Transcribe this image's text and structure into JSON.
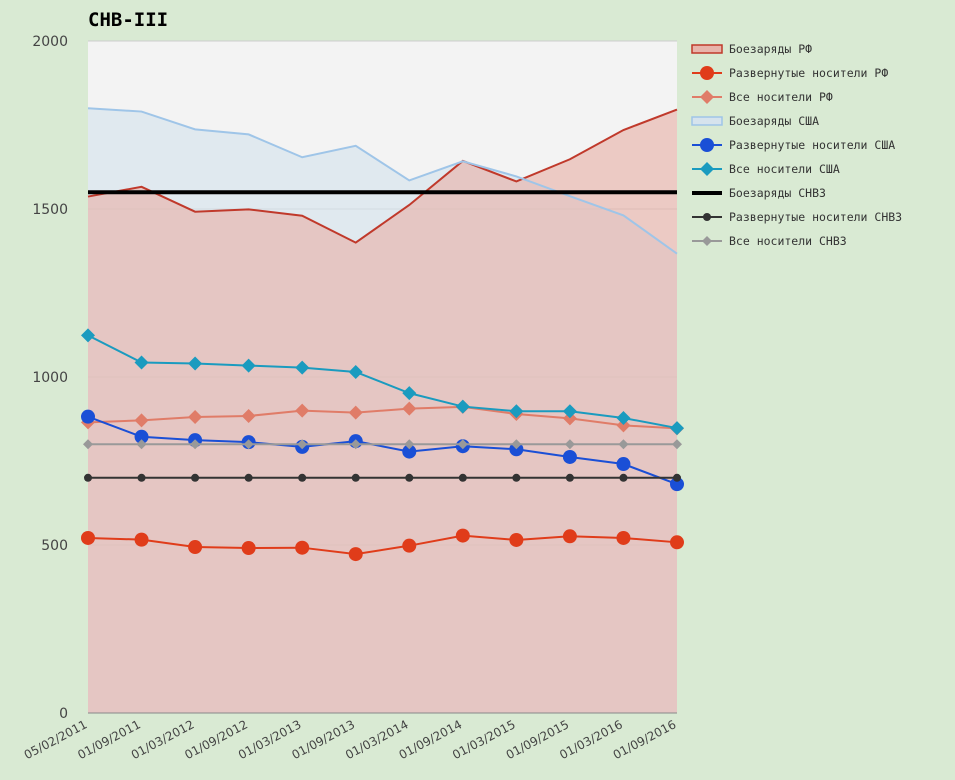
{
  "chart_data": {
    "type": "line",
    "title": "СНВ-III",
    "xlabel": "",
    "ylabel": "",
    "ylim": [
      0,
      2000
    ],
    "yticks": [
      0,
      500,
      1000,
      1500,
      2000
    ],
    "grid": true,
    "legend_position": "right",
    "categories": [
      "05/02/2011",
      "01/09/2011",
      "01/03/2012",
      "01/09/2012",
      "01/03/2013",
      "01/09/2013",
      "01/03/2014",
      "01/09/2014",
      "01/03/2015",
      "01/09/2015",
      "01/03/2016",
      "01/09/2016"
    ],
    "series": [
      {
        "name": "Боезаряды РФ",
        "kind": "area",
        "color": "#c0392b",
        "fill": "#e8b4ab",
        "values": [
          1537,
          1566,
          1492,
          1499,
          1480,
          1400,
          1512,
          1643,
          1582,
          1648,
          1735,
          1796
        ]
      },
      {
        "name": "Развернутые носители РФ",
        "kind": "line",
        "marker": "circle",
        "color": "#e03c1a",
        "values": [
          521,
          516,
          494,
          491,
          492,
          473,
          498,
          528,
          515,
          526,
          521,
          508
        ]
      },
      {
        "name": "Все носители РФ",
        "kind": "line",
        "marker": "diamond",
        "color": "#e07c68",
        "values": [
          865,
          871,
          881,
          884,
          900,
          894,
          906,
          911,
          890,
          877,
          856,
          847
        ]
      },
      {
        "name": "Боезаряды США",
        "kind": "area",
        "color": "#9fc5e8",
        "fill": "#d6e3ed",
        "values": [
          1800,
          1790,
          1737,
          1722,
          1654,
          1688,
          1585,
          1642,
          1597,
          1538,
          1481,
          1367
        ]
      },
      {
        "name": "Развернутые носители США",
        "kind": "line",
        "marker": "circle",
        "color": "#1a4fd6",
        "values": [
          882,
          822,
          812,
          806,
          792,
          809,
          778,
          794,
          785,
          762,
          741,
          681
        ]
      },
      {
        "name": "Все носители США",
        "kind": "line",
        "marker": "diamond",
        "color": "#1a9bbf",
        "values": [
          1124,
          1043,
          1040,
          1034,
          1028,
          1015,
          952,
          912,
          898,
          898,
          878,
          848
        ]
      },
      {
        "name": "Боезаряды СНВ3",
        "kind": "line",
        "marker": "none",
        "color": "#000000",
        "values": [
          1550,
          1550,
          1550,
          1550,
          1550,
          1550,
          1550,
          1550,
          1550,
          1550,
          1550,
          1550
        ]
      },
      {
        "name": "Развернутые носители СНВ3",
        "kind": "line",
        "marker": "smallcircle",
        "color": "#333333",
        "values": [
          700,
          700,
          700,
          700,
          700,
          700,
          700,
          700,
          700,
          700,
          700,
          700
        ]
      },
      {
        "name": "Все носители СНВ3",
        "kind": "line",
        "marker": "smalldiamond",
        "color": "#999999",
        "values": [
          800,
          800,
          800,
          800,
          800,
          800,
          800,
          800,
          800,
          800,
          800,
          800
        ]
      }
    ],
    "colors": {
      "page_background": "#d9ead3",
      "plot_background": "#f3f3f3",
      "gridline": "#cccccc"
    }
  }
}
